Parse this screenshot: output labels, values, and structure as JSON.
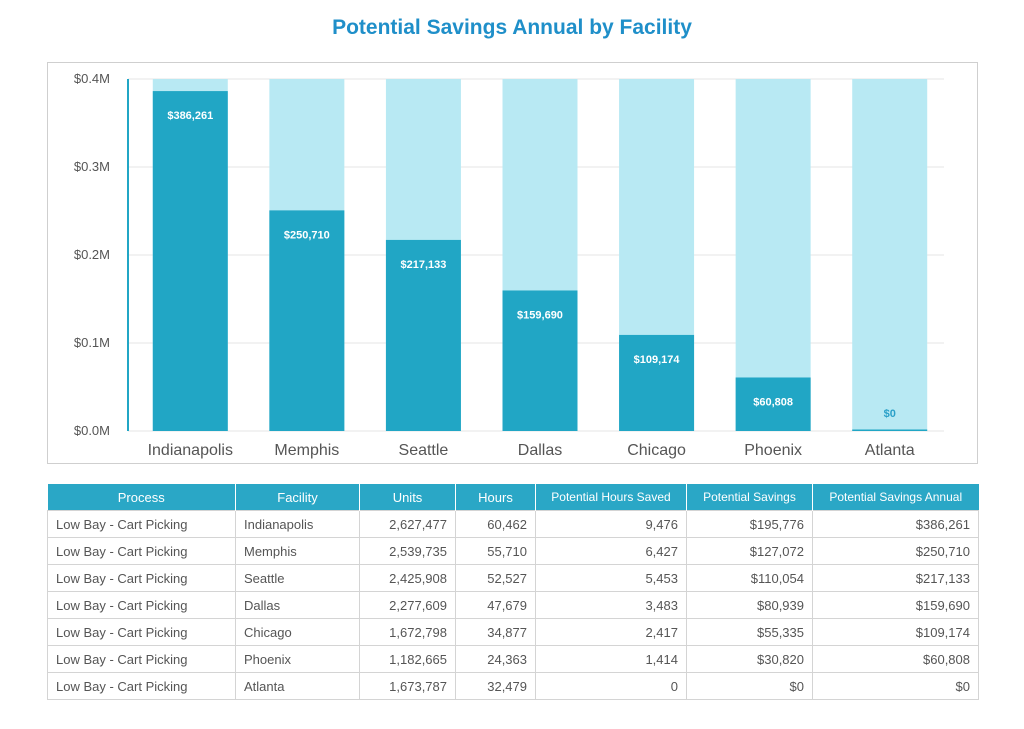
{
  "page": {
    "title": "Potential Savings Annual by Facility"
  },
  "colors": {
    "bar": "#21a6c5",
    "bar_background": "#b8e9f3",
    "title": "#1f8fc9",
    "header": "#2aa7c6"
  },
  "chart_data": {
    "type": "bar",
    "title": "Potential Savings Annual by Facility",
    "categories": [
      "Indianapolis",
      "Memphis",
      "Seattle",
      "Dallas",
      "Chicago",
      "Phoenix",
      "Atlanta"
    ],
    "values": [
      386261,
      250710,
      217133,
      159690,
      109174,
      60808,
      0
    ],
    "data_labels": [
      "$386,261",
      "$250,710",
      "$217,133",
      "$159,690",
      "$109,174",
      "$60,808",
      "$0"
    ],
    "background_max": 400000,
    "ylim": [
      0,
      400000
    ],
    "yticks": [
      0,
      100000,
      200000,
      300000,
      400000
    ],
    "ytick_labels": [
      "$0.0M",
      "$0.1M",
      "$0.2M",
      "$0.3M",
      "$0.4M"
    ],
    "grid": true,
    "legend": "none"
  },
  "table": {
    "headers": [
      "Process",
      "Facility",
      "Units",
      "Hours",
      "Potential Hours Saved",
      "Potential Savings",
      "Potential Savings Annual"
    ],
    "rows": [
      [
        "Low Bay - Cart Picking",
        "Indianapolis",
        "2,627,477",
        "60,462",
        "9,476",
        "$195,776",
        "$386,261"
      ],
      [
        "Low Bay - Cart Picking",
        "Memphis",
        "2,539,735",
        "55,710",
        "6,427",
        "$127,072",
        "$250,710"
      ],
      [
        "Low Bay - Cart Picking",
        "Seattle",
        "2,425,908",
        "52,527",
        "5,453",
        "$110,054",
        "$217,133"
      ],
      [
        "Low Bay - Cart Picking",
        "Dallas",
        "2,277,609",
        "47,679",
        "3,483",
        "$80,939",
        "$159,690"
      ],
      [
        "Low Bay - Cart Picking",
        "Chicago",
        "1,672,798",
        "34,877",
        "2,417",
        "$55,335",
        "$109,174"
      ],
      [
        "Low Bay - Cart Picking",
        "Phoenix",
        "1,182,665",
        "24,363",
        "1,414",
        "$30,820",
        "$60,808"
      ],
      [
        "Low Bay - Cart Picking",
        "Atlanta",
        "1,673,787",
        "32,479",
        "0",
        "$0",
        "$0"
      ]
    ]
  }
}
